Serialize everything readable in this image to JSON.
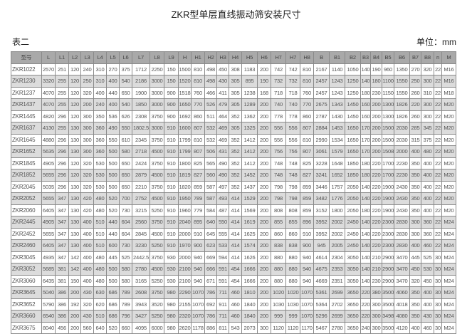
{
  "title": "ZKR型单层直线振动筛安装尺寸",
  "table_label": "表二",
  "unit_label": "单位：mm",
  "colors": {
    "header_bg": "#a9a9a9",
    "alt_row_bg": "#dcdcdc",
    "border": "#8a8a8a"
  },
  "table": {
    "headers": [
      "型号",
      "L",
      "L1",
      "L2",
      "L3",
      "L4",
      "L5",
      "L6",
      "L7",
      "L8",
      "L9",
      "H",
      "H1",
      "H2",
      "H3",
      "H4",
      "H5",
      "H6",
      "H7",
      "H7",
      "H8",
      "B",
      "B1",
      "B2",
      "B3",
      "B4",
      "B5",
      "B6",
      "B7",
      "B8",
      "n",
      "M"
    ],
    "rows": [
      [
        "ZKR1022",
        "2570",
        "251",
        "120",
        "240",
        "310",
        "270",
        "375",
        "1712",
        "2250",
        "150",
        "1500",
        "810",
        "498",
        "450",
        "308",
        "1183",
        "200",
        "742",
        "742",
        "810",
        "2167",
        "1140",
        "1050",
        "140",
        "190",
        "960",
        "1350",
        "270",
        "320",
        "22",
        "M16"
      ],
      [
        "ZKR1230",
        "3320",
        "255",
        "120",
        "250",
        "310",
        "400",
        "540",
        "2186",
        "3000",
        "150",
        "1520",
        "810",
        "498",
        "430",
        "305",
        "895",
        "190",
        "732",
        "732",
        "810",
        "2457",
        "1243",
        "1250",
        "140",
        "180",
        "1100",
        "1550",
        "250",
        "300",
        "22",
        "M16"
      ],
      [
        "ZKR1237",
        "4070",
        "255",
        "120",
        "320",
        "400",
        "440",
        "650",
        "1900",
        "3000",
        "900",
        "1518",
        "760",
        "466",
        "411",
        "305",
        "1238",
        "168",
        "718",
        "718",
        "760",
        "2457",
        "1243",
        "1250",
        "180",
        "230",
        "1150",
        "1550",
        "260",
        "310",
        "22",
        "M18"
      ],
      [
        "ZKR1437",
        "4070",
        "255",
        "120",
        "200",
        "240",
        "400",
        "540",
        "1850",
        "3000",
        "900",
        "1650",
        "770",
        "526",
        "479",
        "305",
        "1289",
        "200",
        "740",
        "740",
        "770",
        "2675",
        "1343",
        "1450",
        "160",
        "200",
        "1300",
        "1826",
        "220",
        "300",
        "22",
        "M20"
      ],
      [
        "ZKR1445",
        "4820",
        "296",
        "120",
        "300",
        "350",
        "536",
        "626",
        "2308",
        "3750",
        "900",
        "1692",
        "860",
        "511",
        "464",
        "352",
        "1362",
        "200",
        "778",
        "778",
        "860",
        "2787",
        "1430",
        "1450",
        "160",
        "200",
        "1300",
        "1826",
        "260",
        "300",
        "22",
        "M20"
      ],
      [
        "ZKR1637",
        "4130",
        "255",
        "130",
        "300",
        "360",
        "490",
        "550",
        "1802.5",
        "3000",
        "910",
        "1600",
        "807",
        "532",
        "469",
        "305",
        "1325",
        "200",
        "556",
        "556",
        "807",
        "2884",
        "1453",
        "1650",
        "170",
        "200",
        "1500",
        "2030",
        "285",
        "345",
        "22",
        "M20"
      ],
      [
        "ZKR1645",
        "4880",
        "296",
        "130",
        "300",
        "360",
        "550",
        "610",
        "2345",
        "3750",
        "910",
        "1799",
        "810",
        "532",
        "469",
        "352",
        "1412",
        "200",
        "556",
        "556",
        "810",
        "2990",
        "1534",
        "1650",
        "170",
        "200",
        "1500",
        "2030",
        "315",
        "375",
        "22",
        "M20"
      ],
      [
        "ZKR1652",
        "5635",
        "296",
        "130",
        "300",
        "360",
        "500",
        "580",
        "2718",
        "4500",
        "910",
        "1799",
        "807",
        "506",
        "431",
        "352",
        "1412",
        "200",
        "756",
        "756",
        "807",
        "3061",
        "1579",
        "1650",
        "170",
        "200",
        "1508",
        "2000",
        "400",
        "480",
        "22",
        "M20"
      ],
      [
        "ZKR1845",
        "4905",
        "296",
        "120",
        "320",
        "530",
        "500",
        "650",
        "2424",
        "3750",
        "910",
        "1800",
        "825",
        "565",
        "490",
        "352",
        "1412",
        "200",
        "748",
        "748",
        "825",
        "3228",
        "1648",
        "1850",
        "180",
        "220",
        "1700",
        "2230",
        "350",
        "400",
        "22",
        "M20"
      ],
      [
        "ZKR1852",
        "5655",
        "296",
        "120",
        "320",
        "530",
        "500",
        "650",
        "2879",
        "4500",
        "910",
        "1819",
        "827",
        "560",
        "490",
        "352",
        "1452",
        "200",
        "748",
        "748",
        "827",
        "3241",
        "1652",
        "1850",
        "180",
        "220",
        "1700",
        "2230",
        "350",
        "400",
        "22",
        "M20"
      ],
      [
        "ZKR2045",
        "5035",
        "296",
        "130",
        "320",
        "530",
        "500",
        "650",
        "2210",
        "3750",
        "910",
        "1820",
        "859",
        "587",
        "497",
        "352",
        "1437",
        "200",
        "798",
        "798",
        "859",
        "3446",
        "1757",
        "2050",
        "140",
        "220",
        "1900",
        "2430",
        "350",
        "400",
        "22",
        "M20"
      ],
      [
        "ZKR2052",
        "5655",
        "347",
        "130",
        "420",
        "480",
        "520",
        "700",
        "2752",
        "4500",
        "910",
        "1950",
        "789",
        "587",
        "493",
        "414",
        "1529",
        "200",
        "798",
        "798",
        "859",
        "3482",
        "1776",
        "2050",
        "140",
        "220",
        "1900",
        "2430",
        "350",
        "400",
        "22",
        "M20"
      ],
      [
        "ZKR2060",
        "6405",
        "347",
        "130",
        "420",
        "480",
        "520",
        "730",
        "3215",
        "5250",
        "910",
        "1960",
        "779",
        "584",
        "487",
        "414",
        "1569",
        "200",
        "808",
        "808",
        "859",
        "3152",
        "1800",
        "2050",
        "180",
        "220",
        "1900",
        "2430",
        "350",
        "400",
        "22",
        "M20"
      ],
      [
        "ZKR2445",
        "4905",
        "347",
        "130",
        "400",
        "510",
        "440",
        "604",
        "2560",
        "3750",
        "910",
        "2040",
        "895",
        "640",
        "550",
        "414",
        "1619",
        "200",
        "855",
        "855",
        "896",
        "3952",
        "2002",
        "2450",
        "140",
        "220",
        "2300",
        "2830",
        "300",
        "360",
        "22",
        "M24"
      ],
      [
        "ZKR2452",
        "5655",
        "347",
        "130",
        "400",
        "510",
        "440",
        "604",
        "2845",
        "4500",
        "910",
        "2000",
        "910",
        "645",
        "555",
        "414",
        "1625",
        "200",
        "860",
        "860",
        "910",
        "3952",
        "2002",
        "2450",
        "140",
        "220",
        "2300",
        "2830",
        "300",
        "360",
        "22",
        "M24"
      ],
      [
        "ZKR2460",
        "6405",
        "347",
        "130",
        "400",
        "510",
        "600",
        "730",
        "3230",
        "5250",
        "910",
        "1970",
        "900",
        "623",
        "533",
        "414",
        "1574",
        "200",
        "838",
        "838",
        "900",
        "945",
        "2005",
        "2450",
        "140",
        "220",
        "2300",
        "2830",
        "400",
        "460",
        "22",
        "M24"
      ],
      [
        "ZKR3045",
        "4935",
        "347",
        "142",
        "400",
        "480",
        "445",
        "525",
        "2442.5",
        "3750",
        "930",
        "2000",
        "940",
        "669",
        "594",
        "414",
        "1626",
        "200",
        "880",
        "880",
        "940",
        "4614",
        "2304",
        "3050",
        "140",
        "210",
        "2900",
        "3470",
        "445",
        "525",
        "30",
        "M24"
      ],
      [
        "ZKR3052",
        "5685",
        "381",
        "142",
        "400",
        "480",
        "500",
        "580",
        "2780",
        "4500",
        "930",
        "2100",
        "940",
        "666",
        "591",
        "454",
        "1666",
        "200",
        "880",
        "880",
        "940",
        "4675",
        "2353",
        "3050",
        "140",
        "210",
        "2900",
        "3470",
        "450",
        "530",
        "30",
        "M24"
      ],
      [
        "ZKR3060",
        "6435",
        "381",
        "150",
        "400",
        "480",
        "500",
        "580",
        "3165",
        "5250",
        "930",
        "2100",
        "940",
        "671",
        "591",
        "454",
        "1666",
        "200",
        "880",
        "880",
        "940",
        "4669",
        "2351",
        "3050",
        "140",
        "230",
        "2900",
        "3470",
        "320",
        "450",
        "30",
        "M24"
      ],
      [
        "ZKR3645",
        "5040",
        "386",
        "200",
        "430",
        "630",
        "686",
        "789",
        "2608",
        "3750",
        "980",
        "2290",
        "1070",
        "786",
        "711",
        "460",
        "1810",
        "200",
        "1020",
        "1020",
        "1070",
        "5361",
        "2699",
        "3650",
        "220",
        "380",
        "3500",
        "4060",
        "350",
        "400",
        "30",
        "M24"
      ],
      [
        "ZKR3652",
        "5790",
        "386",
        "192",
        "320",
        "620",
        "686",
        "789",
        "3943",
        "3520",
        "980",
        "2155",
        "1070",
        "692",
        "911",
        "460",
        "1840",
        "200",
        "1030",
        "1030",
        "1070",
        "5364",
        "2702",
        "3650",
        "220",
        "300",
        "3500",
        "4018",
        "350",
        "400",
        "30",
        "M24"
      ],
      [
        "ZKR3660",
        "6540",
        "386",
        "200",
        "430",
        "510",
        "686",
        "796",
        "3427",
        "5250",
        "980",
        "2320",
        "1070",
        "786",
        "711",
        "460",
        "1840",
        "200",
        "999",
        "999",
        "1070",
        "5296",
        "2699",
        "3650",
        "220",
        "300",
        "3498",
        "4080",
        "350",
        "430",
        "30",
        "M24"
      ],
      [
        "ZKR3675",
        "8040",
        "456",
        "200",
        "560",
        "640",
        "520",
        "660",
        "4095",
        "6000",
        "980",
        "2620",
        "1178",
        "886",
        "811",
        "543",
        "2073",
        "300",
        "1120",
        "1120",
        "1170",
        "5467",
        "2780",
        "3650",
        "240",
        "300",
        "3500",
        "4120",
        "400",
        "460",
        "30",
        "M24"
      ]
    ]
  }
}
